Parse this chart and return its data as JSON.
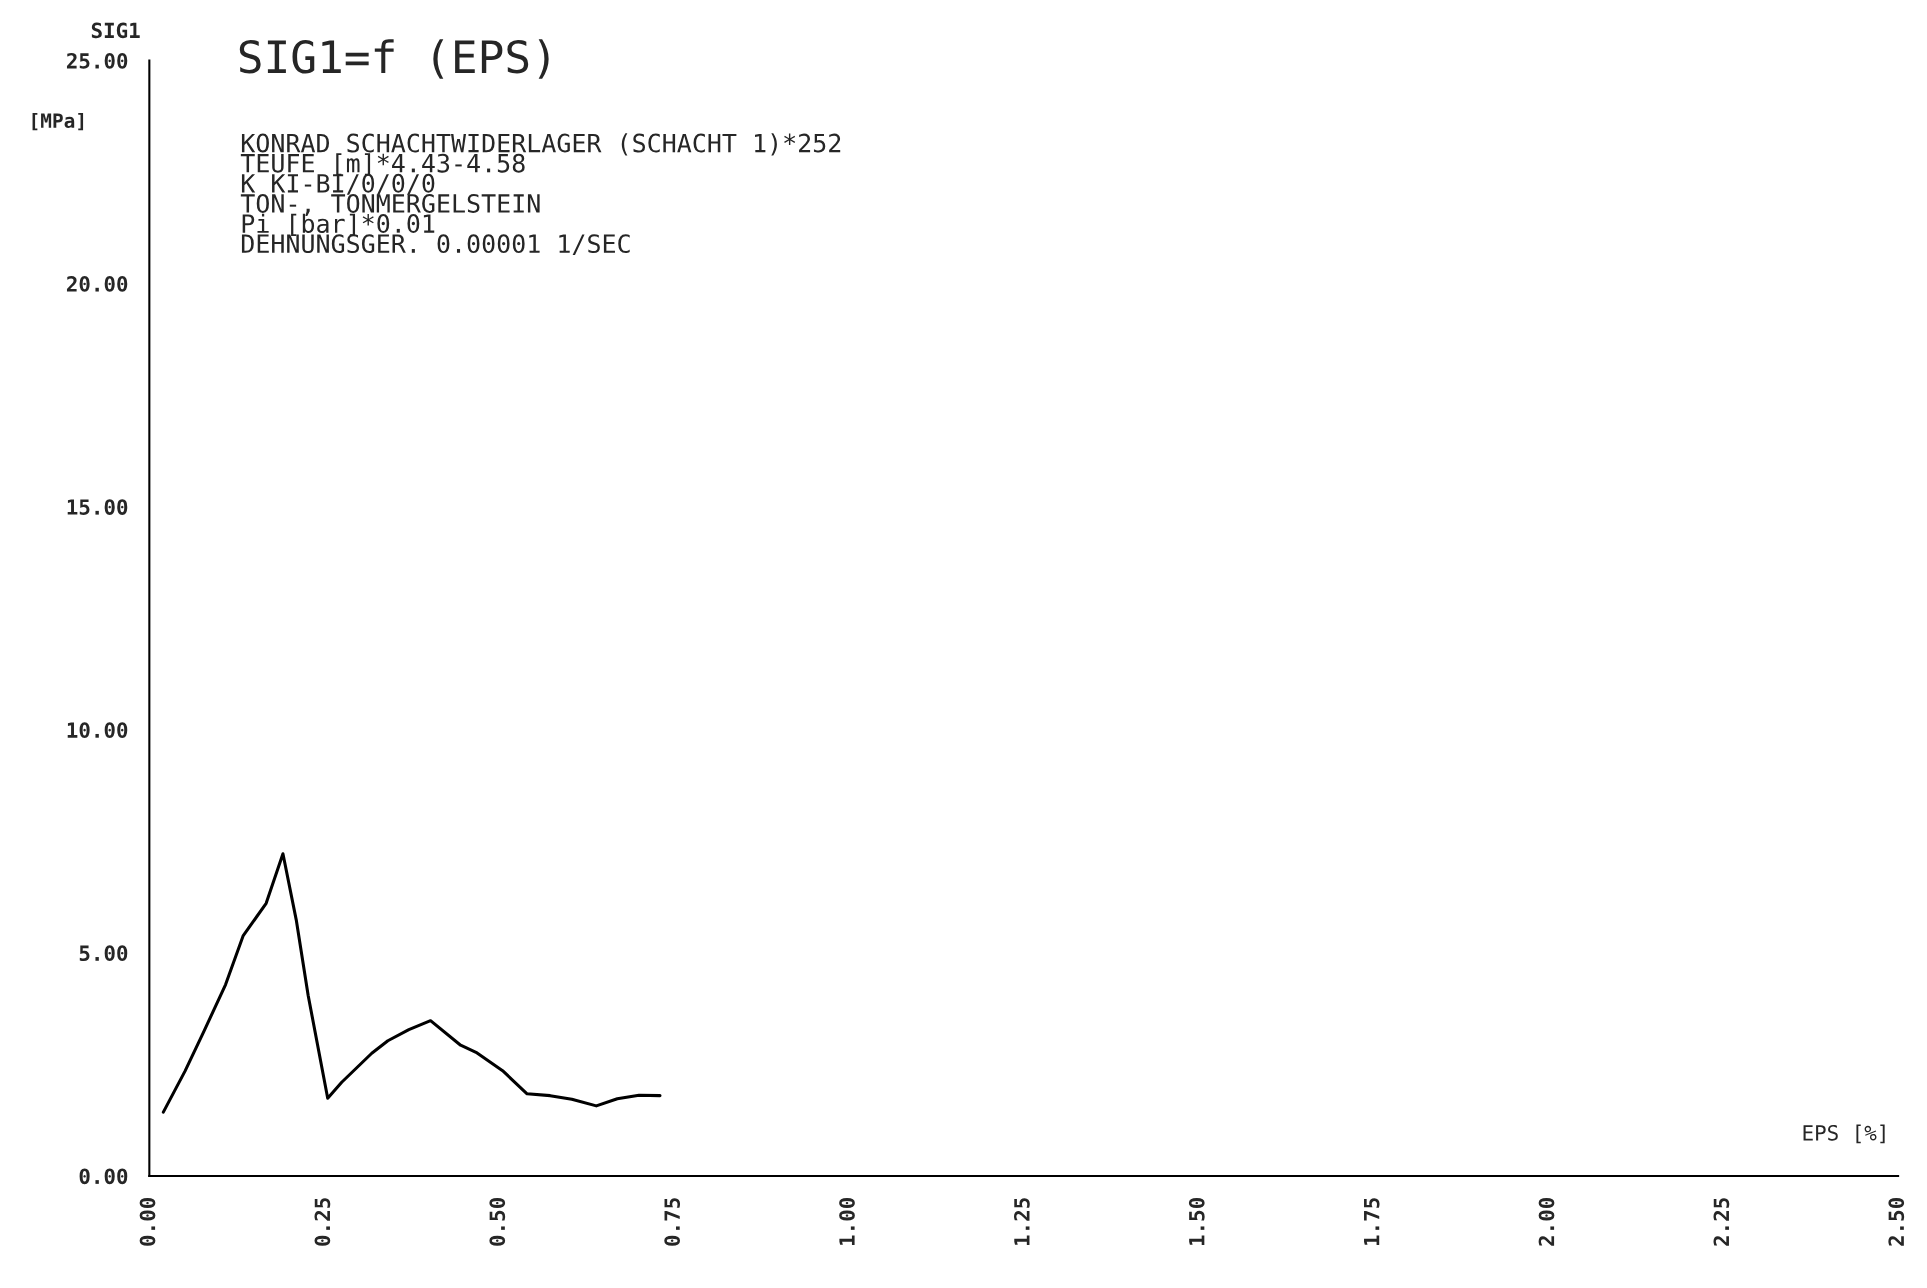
{
  "chart_data": {
    "type": "line",
    "title": "SIG1=f (EPS)",
    "xlabel": "EPS [%]",
    "ylabel": "SIG1",
    "annotations": [
      "[MPa]",
      "KONRAD SCHACHTWIDERLAGER (SCHACHT 1)*252",
      "TEUFE [m]*4.43-4.58",
      "K KI-BI/0/0/0",
      "TON-, TONMERGELSTEIN",
      "Pi [bar]*0.01",
      "DEHNUNGSGER. 0.00001 1/SEC"
    ],
    "series": [
      {
        "color": "#000000",
        "x": [
          0.02,
          0.051,
          0.078,
          0.109,
          0.134,
          0.167,
          0.191,
          0.21,
          0.227,
          0.255,
          0.275,
          0.318,
          0.341,
          0.371,
          0.402,
          0.445,
          0.467,
          0.505,
          0.54,
          0.573,
          0.604,
          0.639,
          0.669,
          0.7,
          0.73
        ],
        "values": [
          1.43,
          2.35,
          3.24,
          4.29,
          5.38,
          6.11,
          7.22,
          5.74,
          4.05,
          1.74,
          2.1,
          2.75,
          3.03,
          3.28,
          3.48,
          2.93,
          2.77,
          2.36,
          1.84,
          1.8,
          1.72,
          1.57,
          1.73,
          1.81,
          1.8
        ]
      }
    ],
    "xlim": [
      0,
      2.5
    ],
    "ylim": [
      0,
      25
    ],
    "xticks": [
      {
        "value": 0,
        "label": "0.00"
      },
      {
        "value": 0.25,
        "label": "0.25"
      },
      {
        "value": 0.5,
        "label": "0.50"
      },
      {
        "value": 0.75,
        "label": "0.75"
      },
      {
        "value": 1.0,
        "label": "1.00"
      },
      {
        "value": 1.25,
        "label": "1.25"
      },
      {
        "value": 1.5,
        "label": "1.50"
      },
      {
        "value": 1.75,
        "label": "1.75"
      },
      {
        "value": 2.0,
        "label": "2.00"
      },
      {
        "value": 2.25,
        "label": "2.25"
      },
      {
        "value": 2.5,
        "label": "2.50"
      }
    ],
    "yticks": [
      {
        "value": 0,
        "label": "0.00"
      },
      {
        "value": 5,
        "label": "5.00"
      },
      {
        "value": 10,
        "label": "10.00"
      },
      {
        "value": 15,
        "label": "15.00"
      },
      {
        "value": 20,
        "label": "20.00"
      },
      {
        "value": 25,
        "label": "25.00"
      }
    ],
    "grid": false,
    "marker": "none",
    "line_style": "solid"
  }
}
